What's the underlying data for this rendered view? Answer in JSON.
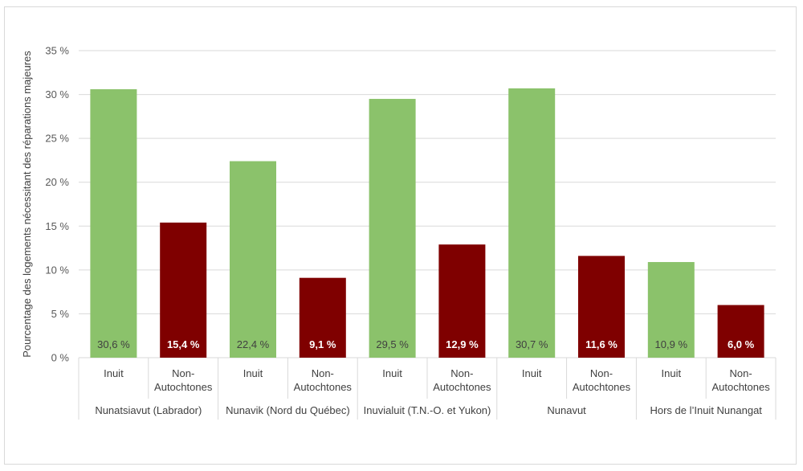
{
  "chart_data": {
    "type": "bar",
    "ylabel": "Pourcentage des logements nécessitant des réparations majeures",
    "ylim": [
      0,
      35
    ],
    "yticks": [
      "0 %",
      "5 %",
      "10 %",
      "15 %",
      "20 %",
      "25 %",
      "30 %",
      "35 %"
    ],
    "grid": true,
    "groups": [
      {
        "name": "Nunatsiavut (Labrador)",
        "bars": [
          {
            "category": [
              "Inuit"
            ],
            "value": 30.6,
            "label": "30,6 %",
            "color": "#8bc26b"
          },
          {
            "category": [
              "Non-",
              "Autochtones"
            ],
            "value": 15.4,
            "label": "15,4 %",
            "color": "#7f0000"
          }
        ]
      },
      {
        "name": "Nunavik (Nord du Québec)",
        "bars": [
          {
            "category": [
              "Inuit"
            ],
            "value": 22.4,
            "label": "22,4 %",
            "color": "#8bc26b"
          },
          {
            "category": [
              "Non-",
              "Autochtones"
            ],
            "value": 9.1,
            "label": "9,1 %",
            "color": "#7f0000"
          }
        ]
      },
      {
        "name": "Inuvialuit (T.N.-O. et Yukon)",
        "bars": [
          {
            "category": [
              "Inuit"
            ],
            "value": 29.5,
            "label": "29,5 %",
            "color": "#8bc26b"
          },
          {
            "category": [
              "Non-",
              "Autochtones"
            ],
            "value": 12.9,
            "label": "12,9 %",
            "color": "#7f0000"
          }
        ]
      },
      {
        "name": "Nunavut",
        "bars": [
          {
            "category": [
              "Inuit"
            ],
            "value": 30.7,
            "label": "30,7 %",
            "color": "#8bc26b"
          },
          {
            "category": [
              "Non-",
              "Autochtones"
            ],
            "value": 11.6,
            "label": "11,6 %",
            "color": "#7f0000"
          }
        ]
      },
      {
        "name": "Hors de l’Inuit Nunangat",
        "bars": [
          {
            "category": [
              "Inuit"
            ],
            "value": 10.9,
            "label": "10,9 %",
            "color": "#8bc26b"
          },
          {
            "category": [
              "Non-",
              "Autochtones"
            ],
            "value": 6.0,
            "label": "6,0 %",
            "color": "#7f0000"
          }
        ]
      }
    ],
    "label_colors": {
      "green_bar_text": "#404040",
      "red_bar_text": "#ffffff"
    },
    "gridline_color": "#d9d9d9"
  }
}
